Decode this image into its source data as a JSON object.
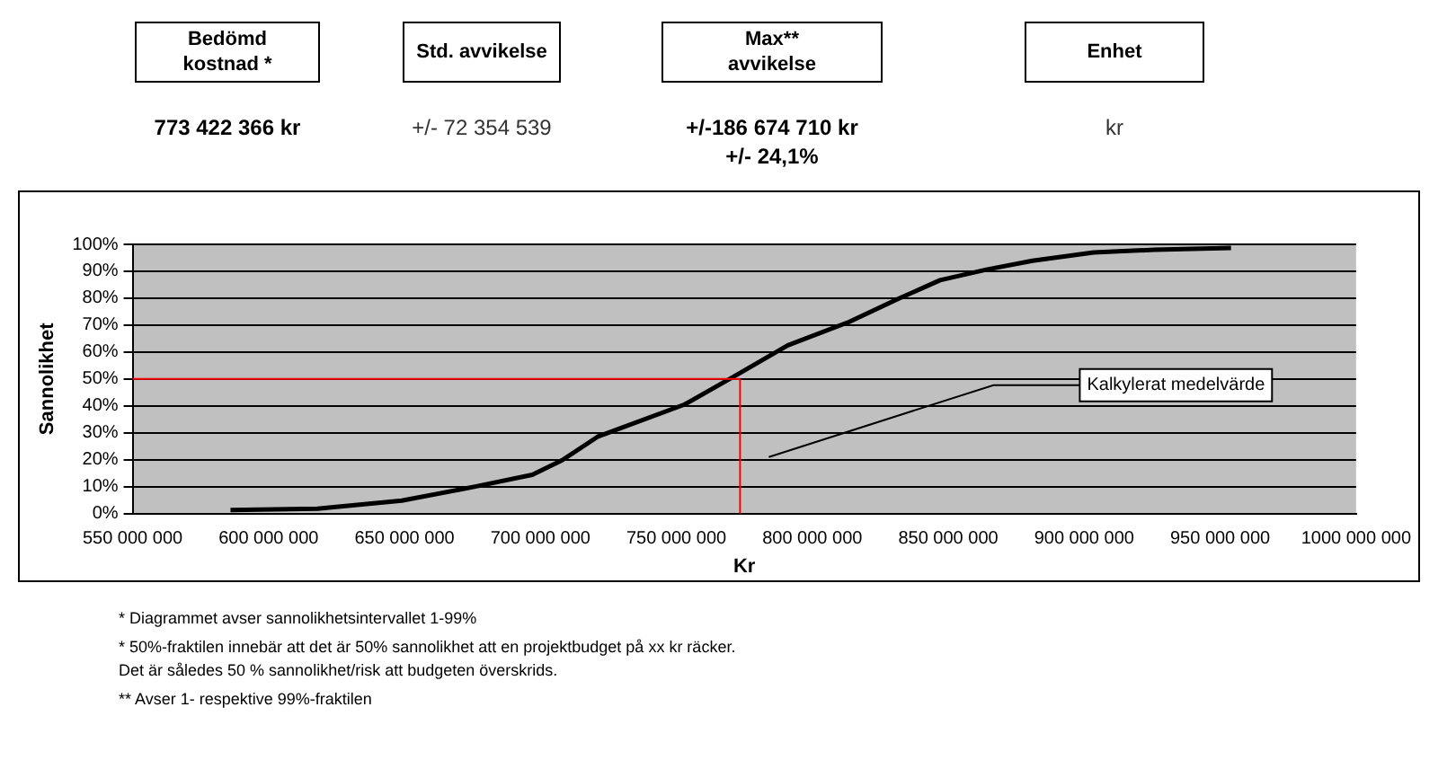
{
  "chart_data": [
    {
      "type": "other",
      "categories": [
        "Bedömd\nkostnad *",
        "Std. avvikelse",
        "Max**\navvikelse",
        "Enhet"
      ],
      "annotations": [
        "773 422 366 kr",
        "+/- 72 354 539",
        "+/-186 674 710 kr\n+/- 24,1%",
        "kr"
      ]
    },
    {
      "type": "line",
      "xlabel": "Kr",
      "ylabel": "Sannolikhet",
      "legend": false,
      "grid": "y",
      "marker": "none",
      "line_style": "solid",
      "x": [
        586000000,
        618000000,
        649000000,
        676000000,
        697000000,
        708000000,
        721000000,
        753000000,
        771000000,
        791000000,
        813600000,
        831500000,
        847000000,
        864000000,
        881000000,
        903500000,
        926000000,
        954000000
      ],
      "series": [
        {
          "color": "#000000",
          "values": [
            1.3,
            1.8,
            4.8,
            10,
            14.4,
            19.8,
            28.5,
            40.5,
            50.8,
            62.5,
            71.2,
            79.7,
            86.7,
            90.6,
            93.9,
            97,
            98,
            98.7
          ]
        }
      ],
      "xlim": [
        550000000,
        1000000000
      ],
      "xticks": [
        {
          "value": 550000000,
          "label": "550 000 000"
        },
        {
          "value": 600000000,
          "label": "600 000 000"
        },
        {
          "value": 650000000,
          "label": "650 000 000"
        },
        {
          "value": 700000000,
          "label": "700 000 000"
        },
        {
          "value": 750000000,
          "label": "750 000 000"
        },
        {
          "value": 800000000,
          "label": "800 000 000"
        },
        {
          "value": 850000000,
          "label": "850 000 000"
        },
        {
          "value": 900000000,
          "label": "900 000 000"
        },
        {
          "value": 950000000,
          "label": "950 000 000"
        },
        {
          "value": 1000000000,
          "label": "1000 000 000"
        }
      ],
      "ylim": [
        0,
        100
      ],
      "yticks": [
        {
          "value": 0,
          "label": "0%"
        },
        {
          "value": 10,
          "label": "10%"
        },
        {
          "value": 20,
          "label": "20%"
        },
        {
          "value": 30,
          "label": "30%"
        },
        {
          "value": 40,
          "label": "40%"
        },
        {
          "value": 50,
          "label": "50%"
        },
        {
          "value": 60,
          "label": "60%"
        },
        {
          "value": 70,
          "label": "70%"
        },
        {
          "value": 80,
          "label": "80%"
        },
        {
          "value": 90,
          "label": "90%"
        },
        {
          "value": 100,
          "label": "100%"
        }
      ],
      "ref_lines": [
        {
          "axis": "x",
          "value": 773422366,
          "color": "#ff0000"
        },
        {
          "axis": "y",
          "value": 50,
          "color": "#ff0000"
        }
      ],
      "annotations": [
        "Kalkylerat medelvärde",
        "* Diagrammet avser sannolikhetsintervallet 1-99%",
        "* 50%-fraktilen innebär att det är 50% sannolikhet att en projektbudget på xx kr räcker.\nDet är således 50 % sannolikhet/risk att budgeten överskrids.",
        "** Avser 1- respektive 99%-fraktilen"
      ]
    }
  ]
}
